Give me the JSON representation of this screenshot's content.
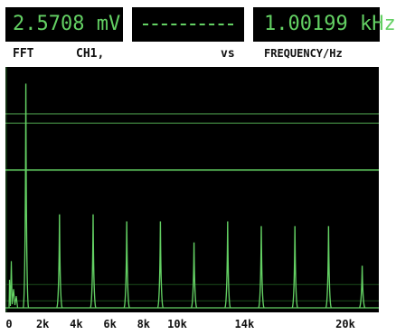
{
  "readouts": {
    "amplitude": "2.5708 mV",
    "center_dashes": "----------",
    "frequency": "1.00199 kHz"
  },
  "header": {
    "mode": "FFT",
    "channel": "CH1,",
    "vs": "vs",
    "x_quantity": "FREQUENCY/Hz"
  },
  "chart_data": {
    "type": "line",
    "title": "",
    "xlabel": "FREQUENCY/Hz",
    "ylabel": "",
    "xlim": [
      0,
      22000
    ],
    "ylim": [
      0,
      1
    ],
    "grid": true,
    "x_ticks": [
      {
        "value": 0,
        "label": "0"
      },
      {
        "value": 2000,
        "label": "2k"
      },
      {
        "value": 4000,
        "label": "4k"
      },
      {
        "value": 6000,
        "label": "6k"
      },
      {
        "value": 8000,
        "label": "8k"
      },
      {
        "value": 10000,
        "label": "10k"
      },
      {
        "value": 14000,
        "label": "14k"
      },
      {
        "value": 20000,
        "label": "20k"
      }
    ],
    "series": [
      {
        "color": "#63d063",
        "peaks": [
          {
            "x": 1000,
            "y": 0.96
          },
          {
            "x": 3000,
            "y": 0.4
          },
          {
            "x": 5000,
            "y": 0.4
          },
          {
            "x": 7000,
            "y": 0.37
          },
          {
            "x": 9000,
            "y": 0.37
          },
          {
            "x": 11000,
            "y": 0.28
          },
          {
            "x": 13000,
            "y": 0.37
          },
          {
            "x": 15000,
            "y": 0.35
          },
          {
            "x": 17000,
            "y": 0.35
          },
          {
            "x": 19000,
            "y": 0.35
          },
          {
            "x": 21000,
            "y": 0.18
          }
        ]
      }
    ],
    "reference_lines": [
      0.83,
      0.79,
      0.59
    ]
  }
}
